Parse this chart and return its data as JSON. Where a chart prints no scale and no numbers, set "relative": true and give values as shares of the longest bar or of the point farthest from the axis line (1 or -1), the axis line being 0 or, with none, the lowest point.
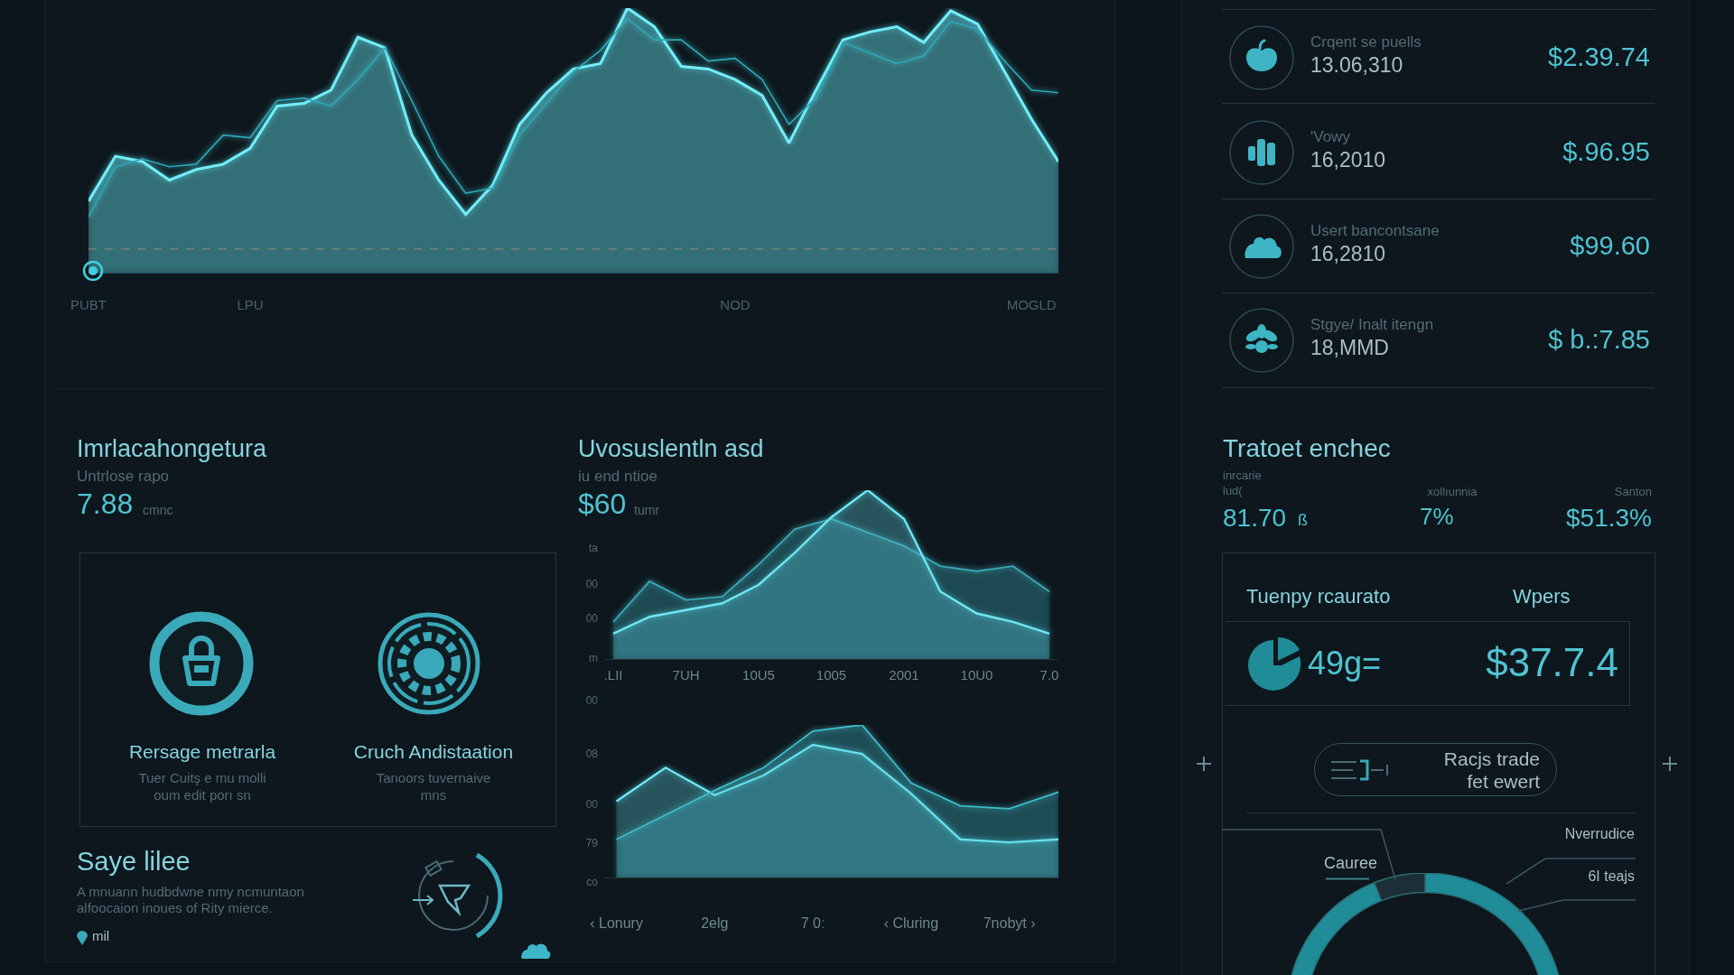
{
  "chart_data": [
    {
      "type": "area",
      "relative": true,
      "categories": [
        "PUBT",
        null,
        null,
        null,
        null,
        null,
        "LPU",
        null,
        null,
        null,
        null,
        null,
        null,
        null,
        null,
        null,
        null,
        null,
        null,
        null,
        null,
        null,
        null,
        null,
        "NOD",
        null,
        null,
        null,
        null,
        null,
        null,
        null,
        null,
        null,
        null,
        "MOGLD",
        null
      ],
      "series": [
        {
          "color": "#74eef9",
          "values": [
            0.27,
            0.44,
            0.42,
            0.35,
            0.39,
            0.41,
            0.47,
            0.63,
            0.64,
            0.69,
            0.89,
            0.85,
            0.52,
            0.35,
            0.22,
            0.33,
            0.56,
            0.68,
            0.77,
            0.79,
            1,
            0.93,
            0.78,
            0.77,
            0.73,
            0.67,
            0.49,
            0.69,
            0.88,
            0.91,
            0.93,
            0.87,
            0.99,
            0.94,
            0.76,
            0.58,
            0.42
          ]
        },
        {
          "type": "line",
          "color": "#2aa9b8",
          "values": [
            0.21,
            0.4,
            0.43,
            0.4,
            0.41,
            0.52,
            0.51,
            0.65,
            0.66,
            0.63,
            0.73,
            0.85,
            0.65,
            0.44,
            0.3,
            0.32,
            0.52,
            0.64,
            0.76,
            0.84,
            0.96,
            0.88,
            0.88,
            0.8,
            0.81,
            0.73,
            0.56,
            0.66,
            0.87,
            0.83,
            0.79,
            0.82,
            0.95,
            0.92,
            0.8,
            0.69,
            0.68
          ]
        }
      ],
      "ref_lines": [
        {
          "axis": "y",
          "value": 0.09,
          "color": "#7a3a22",
          "line_style": "dashed"
        }
      ]
    },
    {
      "type": "other",
      "annotations": [
        "Crqent se puells",
        "13.06,310",
        "$2.39.74",
        "'Vowy",
        "16,2010",
        "$.96.95",
        "Usert bancontsane",
        "16,2810",
        "$99.60",
        "Stgye/ Inalt itengn",
        "18,MMD",
        "$ b.:7.85"
      ]
    },
    {
      "type": "other",
      "title": "Imrlacahongetura",
      "subtitle": "Untrlose rapo",
      "annotations": [
        "7.88",
        "cmnc",
        "Rersage metrarla",
        "Tuer Cuitş e mu molli",
        "oum edit porı sn",
        "Cruch Andistaation",
        "Tanoors tuvernaive",
        "mns",
        "Saye lilee",
        "A mnuann hudbdwne nmy ncmuntaon",
        "alfoocaion inoues of Rity mierce.",
        "mil"
      ]
    },
    {
      "type": "area",
      "relative": true,
      "title": "Uvosuslentln asd",
      "subtitle": "iu end ntioe",
      "annotations": [
        "$60",
        "tumr",
        "ta",
        "00",
        "00",
        "m"
      ],
      "categories": [
        ".LII",
        null,
        "7UH",
        null,
        "10U5",
        null,
        "1005",
        null,
        "2001",
        null,
        "10U0",
        null,
        "7.0"
      ],
      "series": [
        {
          "color": "#3aa7b5",
          "values": [
            0.22,
            0.46,
            0.35,
            0.37,
            0.56,
            0.77,
            0.83,
            0.75,
            0.67,
            0.55,
            0.52,
            0.55,
            0.4
          ]
        },
        {
          "color": "#6fe6f2",
          "values": [
            0.15,
            0.25,
            0.29,
            0.33,
            0.44,
            0.63,
            0.84,
            1,
            0.83,
            0.4,
            0.27,
            0.22,
            0.15
          ]
        }
      ]
    },
    {
      "type": "area",
      "relative": true,
      "annotations": [
        "00",
        "08",
        "00",
        "79",
        "co"
      ],
      "categories": [
        "‹ Lonury",
        null,
        "2elg",
        null,
        "7 0ː",
        null,
        "‹ Cluring",
        null,
        "7nobyt ›",
        null
      ],
      "series": [
        {
          "color": "#6fe6f2",
          "values": [
            0.5,
            0.72,
            0.54,
            0.67,
            0.87,
            0.81,
            0.55,
            0.25,
            0.23,
            0.25
          ]
        },
        {
          "color": "#3fbccb",
          "values": [
            0.25,
            0.41,
            0.57,
            0.72,
            0.96,
            1,
            0.62,
            0.47,
            0.45,
            0.56
          ]
        }
      ]
    },
    {
      "type": "other",
      "title": "Tratoet enchec",
      "annotations": [
        "inrcarie",
        "lud(",
        "xollıunnia",
        "Santon",
        "81.70",
        "ß",
        "7%",
        "$51.3%"
      ]
    },
    {
      "type": "other",
      "title": "Tuenpy rcaurato",
      "annotations": [
        "Wpers",
        "49g=",
        "$37.7.4",
        "Racjs trade",
        "fet ewert"
      ]
    },
    {
      "type": "donut",
      "categories": [
        "Nverrudice",
        "Cauree"
      ],
      "values": [
        94,
        6
      ],
      "colors": [
        "#1f8c97",
        "#1e2e36"
      ],
      "annotations": [
        "6I teajs"
      ]
    }
  ]
}
